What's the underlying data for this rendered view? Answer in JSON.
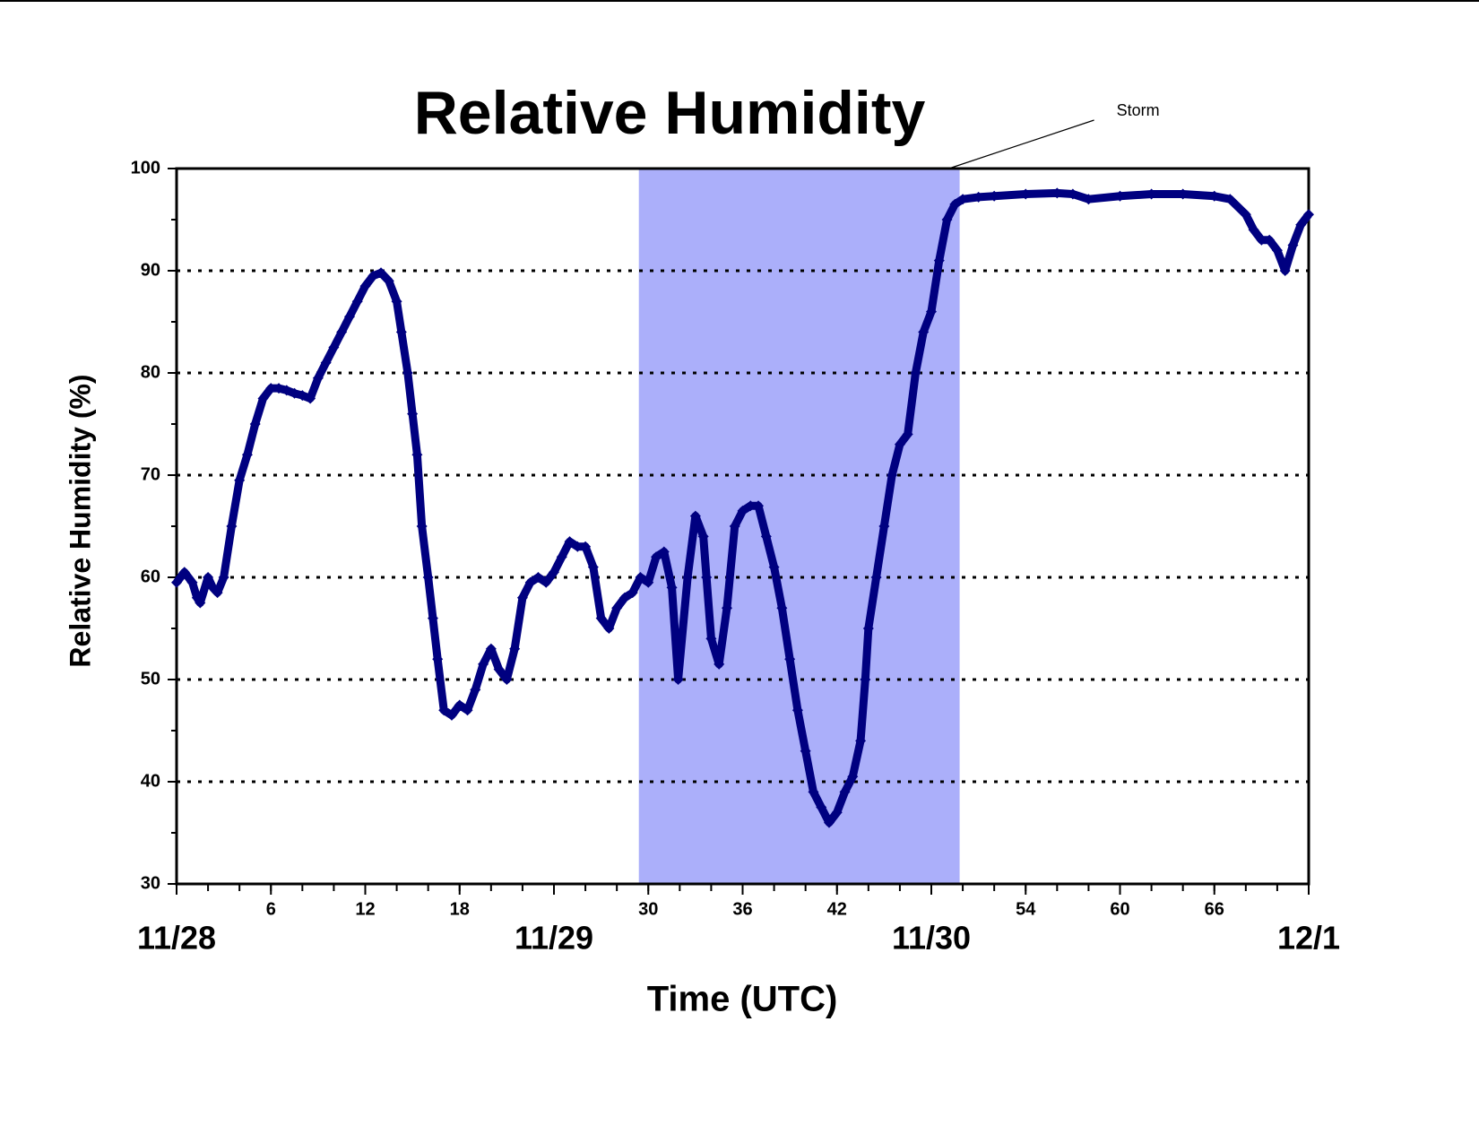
{
  "chart_data": {
    "type": "scatter",
    "title": "Relative Humidity",
    "x_label": "Time (UTC)",
    "y_label": "Relative Humidity (%)",
    "xlim": [
      0,
      72
    ],
    "ylim": [
      30,
      100
    ],
    "xticks": [
      {
        "value": 0,
        "label": "11/28"
      },
      6,
      12,
      18,
      {
        "value": 24,
        "label": "11/29"
      },
      30,
      36,
      42,
      {
        "value": 48,
        "label": "11/30"
      },
      54,
      60,
      66,
      {
        "value": 72,
        "label": "12/1"
      }
    ],
    "xminorticks": [
      0,
      2,
      4,
      6,
      8,
      10,
      12,
      14,
      16,
      18,
      20,
      22,
      24,
      26,
      28,
      30,
      32,
      34,
      36,
      38,
      40,
      42,
      44,
      46,
      48,
      50,
      52,
      54,
      56,
      58,
      60,
      62,
      64,
      66,
      68,
      70,
      72
    ],
    "yticks": [
      30,
      40,
      50,
      60,
      70,
      80,
      90,
      100
    ],
    "yminorticks": [
      35,
      45,
      55,
      65,
      75,
      85,
      95
    ],
    "grid": true,
    "shaded_regions": [
      {
        "xlim": [
          29.4,
          49.8
        ],
        "label": "Storm",
        "color": "#abaffa"
      }
    ],
    "series": [
      {
        "name": "Relative Humidity",
        "color": "#000080",
        "x": [
          0,
          0.5,
          1,
          1.3,
          1.5,
          2,
          2.3,
          2.6,
          3,
          3.5,
          4,
          4.5,
          5,
          5.5,
          6,
          6.5,
          7,
          7.5,
          8,
          8.5,
          9,
          9.5,
          10,
          10.5,
          11,
          11.5,
          12,
          12.5,
          13,
          13.5,
          14,
          14.3,
          14.7,
          15,
          15.3,
          15.6,
          16,
          16.3,
          16.6,
          17,
          17.5,
          18,
          18.5,
          19,
          19.5,
          20,
          20.5,
          21,
          21.5,
          22,
          22.5,
          23,
          23.5,
          24,
          24.5,
          25,
          25.5,
          26,
          26.5,
          27,
          27.5,
          28,
          28.5,
          29,
          29.5,
          30,
          30.5,
          31,
          31.5,
          31.9,
          32.5,
          33,
          33.5,
          33.7,
          34,
          34.5,
          35,
          35.5,
          36,
          36.5,
          37,
          37.5,
          38,
          38.5,
          39,
          39.5,
          40,
          40.5,
          41,
          41.5,
          42,
          42.5,
          43,
          43.5,
          43.8,
          44,
          44.5,
          45,
          45.5,
          46,
          46.5,
          47,
          47.5,
          48,
          48.5,
          49,
          49.5,
          50,
          51,
          52,
          54,
          56,
          57,
          58,
          60,
          62,
          64,
          66,
          67,
          68,
          68.5,
          69,
          69.5,
          70,
          70.5,
          71,
          71.5,
          72
        ],
        "values": [
          59.5,
          60.5,
          59.5,
          58,
          57.5,
          60,
          59,
          58.5,
          60,
          65,
          69.5,
          72,
          75,
          77.5,
          78.5,
          78.5,
          78.3,
          78,
          77.8,
          77.5,
          79.5,
          81,
          82.5,
          84,
          85.5,
          87,
          88.5,
          89.5,
          89.8,
          89,
          87,
          84,
          80,
          76,
          72,
          65,
          60,
          56,
          52,
          47,
          46.5,
          47.5,
          47,
          49,
          51.5,
          53,
          51,
          50,
          53,
          58,
          59.5,
          60,
          59.5,
          60.5,
          62,
          63.5,
          63,
          63,
          61,
          56,
          55,
          57,
          58,
          58.5,
          60,
          59.5,
          62,
          62.5,
          59,
          50,
          60,
          66,
          64,
          60,
          54,
          51.5,
          57,
          65,
          66.5,
          67,
          67,
          64,
          61,
          57,
          52,
          47,
          43,
          39,
          37.5,
          36,
          37,
          39,
          40.5,
          44,
          50,
          55,
          60,
          65,
          70,
          73,
          74,
          80,
          84,
          86,
          91,
          95,
          96.5,
          97,
          97.2,
          97.3,
          97.5,
          97.6,
          97.5,
          97,
          97.3,
          97.5,
          97.5,
          97.3,
          97,
          95.5,
          94,
          93,
          93,
          92,
          90,
          92.5,
          94.5,
          95.5
        ]
      }
    ]
  }
}
